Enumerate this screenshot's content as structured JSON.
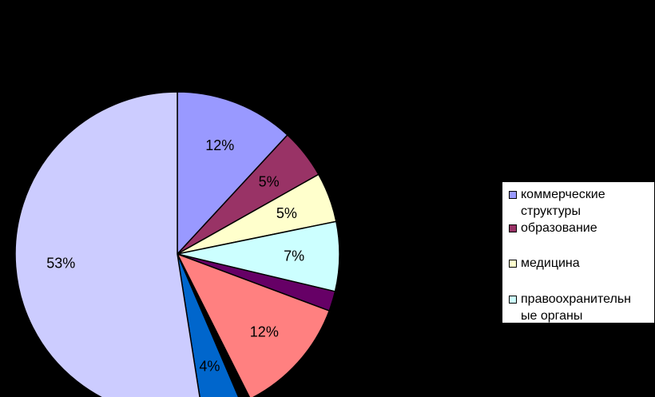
{
  "chart_data": {
    "type": "pie",
    "start_angle_deg": 0,
    "direction": "clockwise",
    "slices": [
      {
        "label": "12%",
        "value": 12,
        "color": "#9999FF",
        "legend": "коммерческие структуры"
      },
      {
        "label": "5%",
        "value": 5,
        "color": "#993366",
        "legend": "образование"
      },
      {
        "label": "5%",
        "value": 5,
        "color": "#FFFFCC",
        "legend": "медицина"
      },
      {
        "label": "7%",
        "value": 7,
        "color": "#CCFFFF",
        "legend": "правоохранительные органы"
      },
      {
        "label": "",
        "value": 2,
        "color": "#660066",
        "legend": ""
      },
      {
        "label": "12%",
        "value": 12,
        "color": "#FF8080",
        "legend": ""
      },
      {
        "label": "",
        "value": 1,
        "color": "#000000",
        "legend": ""
      },
      {
        "label": "4%",
        "value": 4,
        "color": "#0066CC",
        "legend": ""
      },
      {
        "label": "53%",
        "value": 53,
        "color": "#CCCCFF",
        "legend": ""
      }
    ],
    "legend_placement": "right"
  },
  "legend": {
    "items": [
      {
        "line1": "коммерческие",
        "line2": "структуры",
        "color": "#9999FF"
      },
      {
        "line1": "образование",
        "line2": "",
        "color": "#993366"
      },
      {
        "line1": "медицина",
        "line2": "",
        "color": "#FFFFCC"
      },
      {
        "line1": "правоохранительн",
        "line2": "ые органы",
        "color": "#CCFFFF"
      }
    ]
  }
}
